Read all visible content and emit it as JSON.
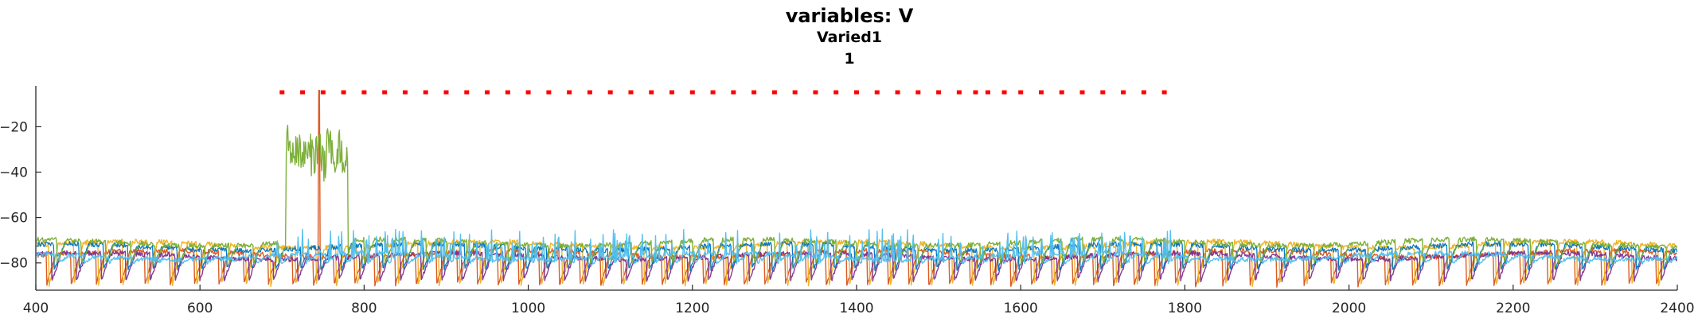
{
  "chart_data": {
    "type": "line",
    "title": "variables: V",
    "subtitle_lines": [
      "Varied1",
      "1"
    ],
    "xlabel": "",
    "ylabel": "",
    "xlim": [
      400,
      2400
    ],
    "ylim": [
      -92,
      -2
    ],
    "x_ticks": [
      400,
      600,
      800,
      1000,
      1200,
      1400,
      1600,
      1800,
      2000,
      2200,
      2400
    ],
    "x_tick_labels": [
      "400",
      "600",
      "800",
      "1000",
      "1200",
      "1400",
      "1600",
      "1800",
      "2000",
      "2200",
      "2400"
    ],
    "y_ticks": [
      -80,
      -60,
      -40,
      -20
    ],
    "y_tick_labels": [
      "−80",
      "−60",
      "−40",
      "−20"
    ],
    "grid": false,
    "legend": "none",
    "series": [
      {
        "color": "#D95319",
        "baseline": -76,
        "trough": -90,
        "burst_gain": 1.15,
        "stroke": 1.4
      },
      {
        "color": "#EDB120",
        "baseline": -72,
        "trough": -90,
        "burst_gain": 1.0,
        "stroke": 1.4
      },
      {
        "color": "#7E2F8E",
        "baseline": -77,
        "trough": -88,
        "burst_gain": 1.05,
        "stroke": 1.4
      },
      {
        "color": "#0072BD",
        "baseline": -73,
        "trough": -83,
        "burst_gain": 0.55,
        "stroke": 1.3
      },
      {
        "color": "#77AC30",
        "baseline": -71,
        "trough": -80,
        "burst_gain": 0.75,
        "stroke": 1.4
      },
      {
        "color": "#4DBEEE",
        "baseline": -77,
        "trough": -80,
        "burst_gain": 0.25,
        "stroke": 1.4
      }
    ],
    "stimulus_markers": {
      "color": "#FF0000",
      "y": -5,
      "x": [
        700,
        725,
        750,
        775,
        800,
        825,
        850,
        875,
        900,
        925,
        950,
        975,
        1000,
        1025,
        1050,
        1075,
        1100,
        1125,
        1150,
        1175,
        1200,
        1225,
        1250,
        1275,
        1300,
        1325,
        1350,
        1375,
        1400,
        1425,
        1450,
        1475,
        1500,
        1525,
        1545,
        1560,
        1580,
        1600,
        1625,
        1650,
        1675,
        1700,
        1725,
        1750,
        1775
      ]
    }
  }
}
